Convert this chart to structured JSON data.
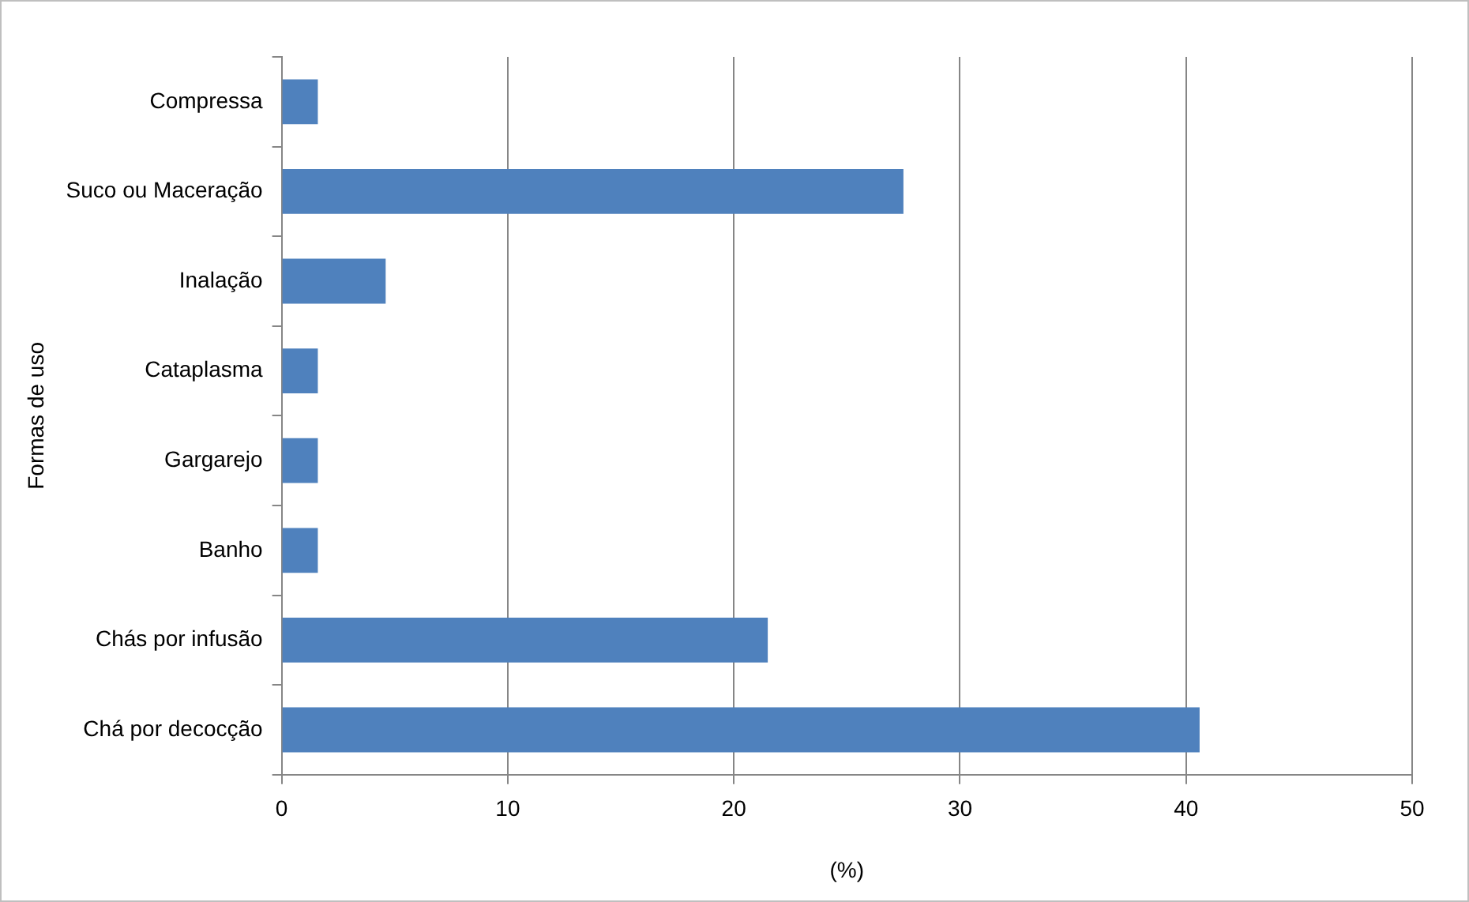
{
  "chart_data": {
    "type": "bar",
    "orientation": "horizontal",
    "xlabel": "(%)",
    "ylabel": "Formas de uso",
    "categories": [
      "Compressa",
      "Suco ou Maceração",
      "Inalação",
      "Cataplasma",
      "Gargarejo",
      "Banho",
      "Chás por infusão",
      "Chá por decocção"
    ],
    "values": [
      1.6,
      27.5,
      4.6,
      1.6,
      1.6,
      1.6,
      21.5,
      40.6
    ],
    "color": "#4f81bd",
    "xlim": [
      0,
      50
    ],
    "xticks": [
      0,
      10,
      20,
      30,
      40,
      50
    ],
    "grid": "x",
    "legend": false
  }
}
